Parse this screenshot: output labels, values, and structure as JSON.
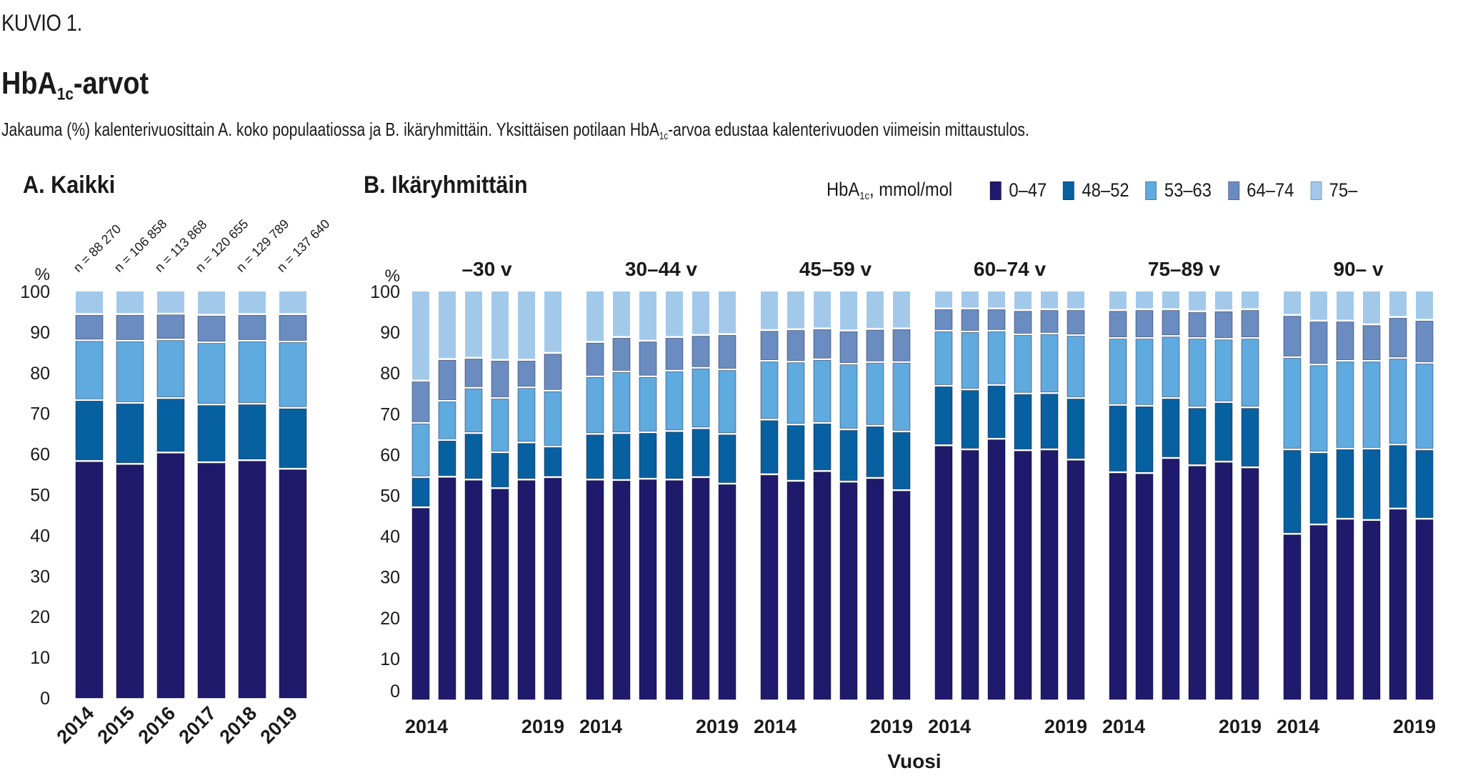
{
  "figure_label": "KUVIO 1.",
  "title": {
    "main": "HbA",
    "sub": "1c",
    "rest": "-arvot"
  },
  "subtitle": {
    "part1": "Jakauma (%) kalenterivuosittain A. koko populaatiossa ja B. ikäryhmittäin. Yksittäisen potilaan HbA",
    "sub": "1c",
    "part2": "-arvoa edustaa kalenterivuoden viimeisin mittaustulos."
  },
  "legend": {
    "title_main": "HbA",
    "title_sub": "1c",
    "title_rest": ", mmol/mol",
    "items": [
      {
        "label": "0–47",
        "color": "#1F1A6B"
      },
      {
        "label": "48–52",
        "color": "#0760A0"
      },
      {
        "label": "53–63",
        "color": "#5FAADF"
      },
      {
        "label": "64–74",
        "color": "#6A8CC0"
      },
      {
        "label": "75–",
        "color": "#A3C9EA"
      }
    ]
  },
  "chart_data": [
    {
      "type": "bar",
      "stacked": true,
      "title": "A. Kaikki",
      "ylabel": "%",
      "xlabel": "",
      "ylim": [
        0,
        100
      ],
      "yticks": [
        0,
        10,
        20,
        30,
        40,
        50,
        60,
        70,
        80,
        90,
        100
      ],
      "categories": [
        "2014",
        "2015",
        "2016",
        "2017",
        "2018",
        "2019"
      ],
      "n_labels": [
        "n = 88 270",
        "n = 106 858",
        "n = 113 868",
        "n = 120 655",
        "n = 129 789",
        "n = 137 640"
      ],
      "series": [
        {
          "name": "0–47",
          "values": [
            58.3,
            57.6,
            60.4,
            58.0,
            58.5,
            56.4
          ]
        },
        {
          "name": "48–52",
          "values": [
            15.0,
            15.0,
            13.4,
            14.2,
            13.9,
            15.0
          ]
        },
        {
          "name": "53–63",
          "values": [
            14.7,
            15.3,
            14.4,
            15.3,
            15.5,
            16.3
          ]
        },
        {
          "name": "64–74",
          "values": [
            6.4,
            6.5,
            6.3,
            6.7,
            6.5,
            6.7
          ]
        },
        {
          "name": "75–",
          "values": [
            5.6,
            5.6,
            5.5,
            5.8,
            5.6,
            5.6
          ]
        }
      ]
    },
    {
      "type": "bar",
      "stacked": true,
      "title": "B. Ikäryhmittäin",
      "ylabel": "%",
      "xlabel": "Vuosi",
      "ylim": [
        0,
        100
      ],
      "yticks": [
        0,
        10,
        20,
        30,
        40,
        50,
        60,
        70,
        80,
        90,
        100
      ],
      "years": [
        "2014",
        "2015",
        "2016",
        "2017",
        "2018",
        "2019"
      ],
      "shown_year_labels": [
        "2014",
        "2019"
      ],
      "groups": [
        {
          "label": "–30 v",
          "series": [
            {
              "name": "0–47",
              "values": [
                47.1,
                54.6,
                53.9,
                51.8,
                53.9,
                54.5
              ]
            },
            {
              "name": "48–52",
              "values": [
                7.4,
                9.0,
                11.4,
                8.8,
                9.1,
                7.5
              ]
            },
            {
              "name": "53–63",
              "values": [
                13.3,
                9.6,
                11.1,
                13.3,
                13.5,
                13.7
              ]
            },
            {
              "name": "64–74",
              "values": [
                10.3,
                10.2,
                7.3,
                9.3,
                6.7,
                9.2
              ]
            },
            {
              "name": "75–",
              "values": [
                21.9,
                16.6,
                16.3,
                16.8,
                16.8,
                15.1
              ]
            }
          ]
        },
        {
          "label": "30–44 v",
          "series": [
            {
              "name": "0–47",
              "values": [
                53.9,
                53.8,
                54.1,
                53.9,
                54.5,
                52.9
              ]
            },
            {
              "name": "48–52",
              "values": [
                11.2,
                11.5,
                11.4,
                11.9,
                12.0,
                12.2
              ]
            },
            {
              "name": "53–63",
              "values": [
                14.1,
                15.1,
                13.7,
                14.8,
                14.8,
                15.8
              ]
            },
            {
              "name": "64–74",
              "values": [
                8.4,
                8.4,
                8.7,
                8.2,
                8.0,
                8.6
              ]
            },
            {
              "name": "75–",
              "values": [
                12.4,
                11.2,
                12.1,
                11.2,
                10.7,
                10.5
              ]
            }
          ]
        },
        {
          "label": "45–59 v",
          "series": [
            {
              "name": "0–47",
              "values": [
                55.2,
                53.6,
                56.0,
                53.4,
                54.3,
                51.3
              ]
            },
            {
              "name": "48–52",
              "values": [
                13.4,
                13.8,
                11.8,
                12.8,
                12.8,
                14.4
              ]
            },
            {
              "name": "53–63",
              "values": [
                14.4,
                15.4,
                15.6,
                16.1,
                15.6,
                17.0
              ]
            },
            {
              "name": "64–74",
              "values": [
                7.5,
                7.9,
                7.5,
                8.1,
                8.1,
                8.2
              ]
            },
            {
              "name": "75–",
              "values": [
                9.5,
                9.3,
                9.1,
                9.6,
                9.2,
                9.1
              ]
            }
          ]
        },
        {
          "label": "60–74 v",
          "series": [
            {
              "name": "0–47",
              "values": [
                62.3,
                61.3,
                63.9,
                61.1,
                61.3,
                58.8
              ]
            },
            {
              "name": "48–52",
              "values": [
                14.6,
                14.7,
                13.2,
                13.9,
                13.8,
                15.1
              ]
            },
            {
              "name": "53–63",
              "values": [
                13.5,
                14.2,
                13.3,
                14.5,
                14.6,
                15.4
              ]
            },
            {
              "name": "64–74",
              "values": [
                5.4,
                5.6,
                5.4,
                5.9,
                5.9,
                6.3
              ]
            },
            {
              "name": "75–",
              "values": [
                4.2,
                4.2,
                4.2,
                4.6,
                4.4,
                4.4
              ]
            }
          ]
        },
        {
          "label": "75–89 v",
          "series": [
            {
              "name": "0–47",
              "values": [
                55.7,
                55.5,
                59.2,
                57.4,
                58.3,
                56.9
              ]
            },
            {
              "name": "48–52",
              "values": [
                16.5,
                16.5,
                14.7,
                14.2,
                14.6,
                14.7
              ]
            },
            {
              "name": "53–63",
              "values": [
                16.4,
                16.6,
                15.2,
                17.0,
                15.5,
                17.0
              ]
            },
            {
              "name": "64–74",
              "values": [
                6.8,
                7.0,
                6.5,
                6.5,
                6.9,
                7.0
              ]
            },
            {
              "name": "75–",
              "values": [
                4.6,
                4.4,
                4.4,
                4.9,
                4.7,
                4.4
              ]
            }
          ]
        },
        {
          "label": "90– v",
          "series": [
            {
              "name": "0–47",
              "values": [
                40.6,
                42.9,
                44.3,
                44.0,
                46.8,
                44.3
              ]
            },
            {
              "name": "48–52",
              "values": [
                20.7,
                17.7,
                17.2,
                17.5,
                15.7,
                17.0
              ]
            },
            {
              "name": "53–63",
              "values": [
                22.6,
                21.5,
                21.5,
                21.5,
                21.2,
                21.2
              ]
            },
            {
              "name": "64–74",
              "values": [
                10.3,
                10.7,
                9.8,
                8.9,
                10.0,
                10.5
              ]
            },
            {
              "name": "75–",
              "values": [
                5.8,
                7.2,
                7.2,
                8.1,
                6.3,
                7.0
              ]
            }
          ]
        }
      ]
    }
  ]
}
